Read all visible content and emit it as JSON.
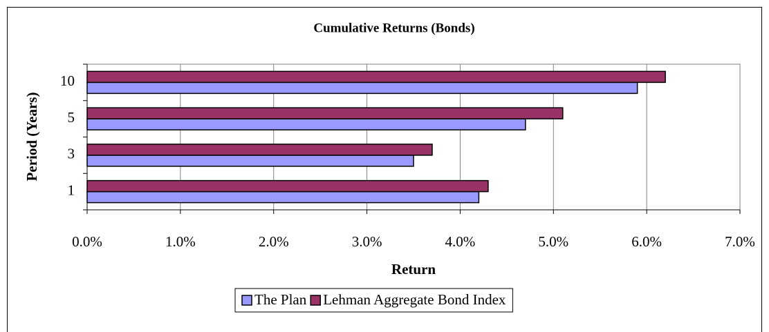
{
  "chart_data": {
    "type": "hbar",
    "title": "Cumulative Returns (Bonds)",
    "x_label": "Return",
    "y_label": "Period (Years)",
    "categories": [
      "1",
      "3",
      "5",
      "10"
    ],
    "series": [
      {
        "name": "The Plan",
        "color": "#9999ff",
        "values": [
          4.2,
          3.5,
          4.7,
          5.9
        ]
      },
      {
        "name": "Lehman Aggregate Bond Index",
        "color": "#993366",
        "values": [
          4.3,
          3.7,
          5.1,
          6.2
        ]
      }
    ],
    "xlim": [
      0,
      7
    ],
    "xticks": [
      {
        "value": 0,
        "label": "0.0%"
      },
      {
        "value": 1,
        "label": "1.0%"
      },
      {
        "value": 2,
        "label": "2.0%"
      },
      {
        "value": 3,
        "label": "3.0%"
      },
      {
        "value": 4,
        "label": "4.0%"
      },
      {
        "value": 5,
        "label": "5.0%"
      },
      {
        "value": 6,
        "label": "6.0%"
      },
      {
        "value": 7,
        "label": "7.0%"
      }
    ],
    "grid": true,
    "legend": "bottom"
  }
}
